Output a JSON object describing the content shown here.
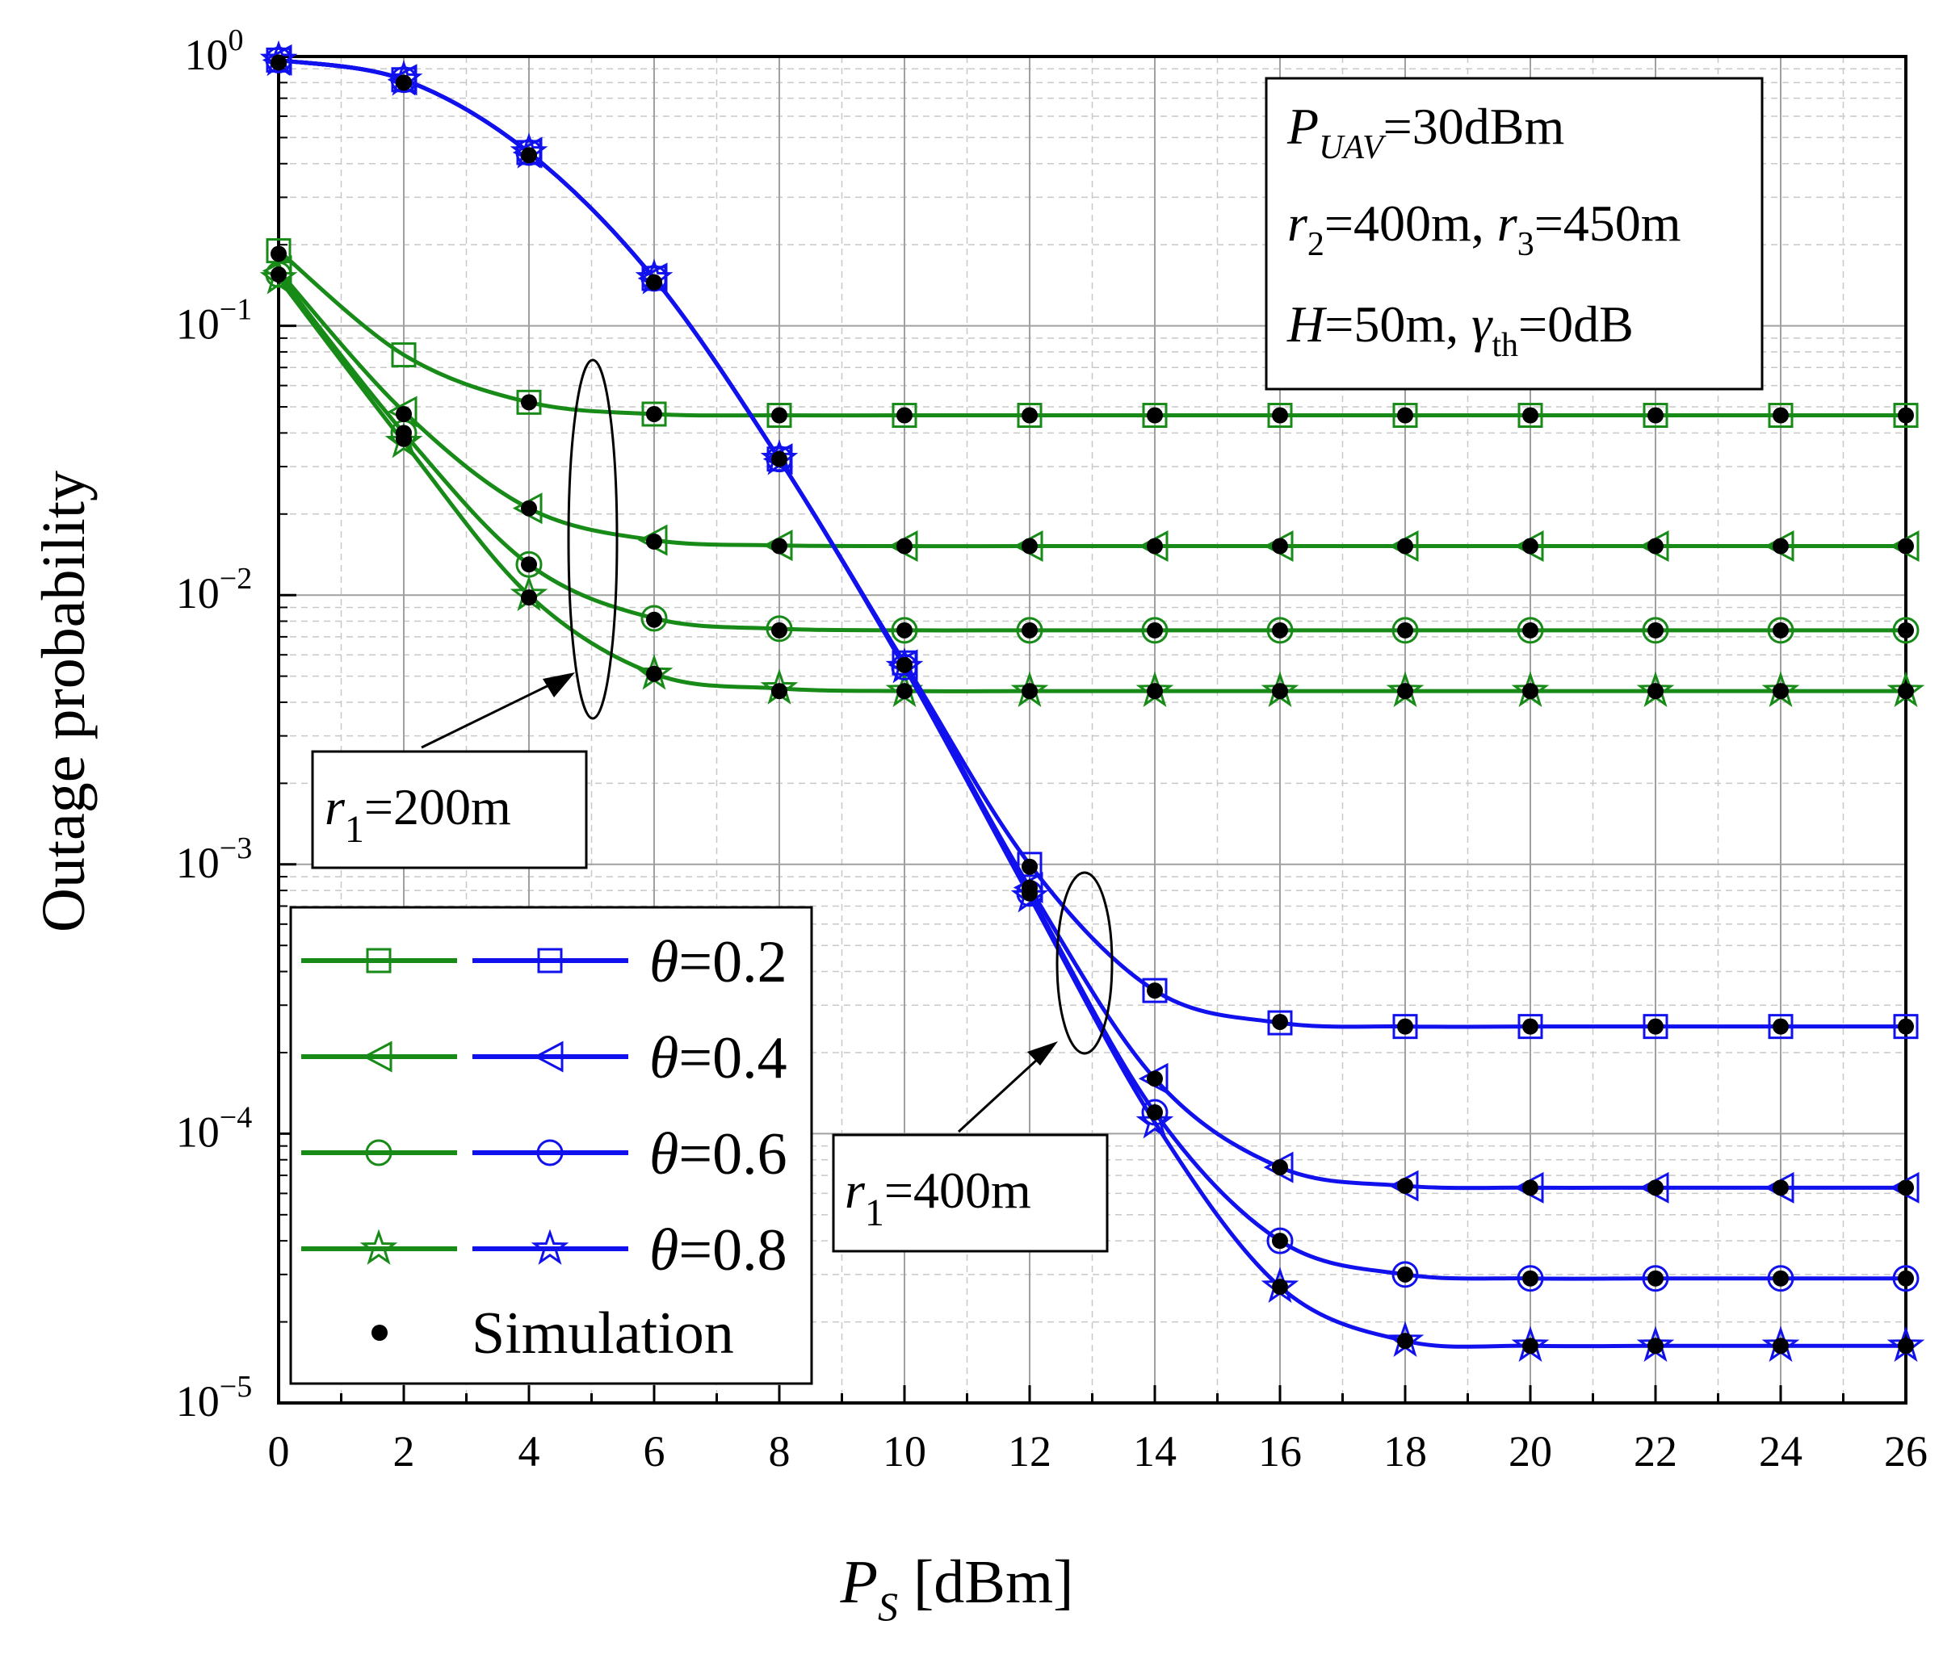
{
  "chart_data": {
    "type": "line",
    "title": "",
    "xlabel": {
      "main": "P",
      "sub": "S",
      "rest": " [dBm]"
    },
    "ylabel": "Outage probability",
    "xlim": [
      0,
      26
    ],
    "ylim": [
      1e-05,
      1
    ],
    "yscale": "log",
    "grid": true,
    "x_ticks": [
      "0",
      "2",
      "4",
      "6",
      "8",
      "10",
      "12",
      "14",
      "16",
      "18",
      "20",
      "22",
      "24",
      "26"
    ],
    "y_ticks": [
      {
        "base": "10",
        "exp": "0",
        "value": 1
      },
      {
        "base": "10",
        "exp": "−1",
        "value": 0.1
      },
      {
        "base": "10",
        "exp": "−2",
        "value": 0.01
      },
      {
        "base": "10",
        "exp": "−3",
        "value": 0.001
      },
      {
        "base": "10",
        "exp": "−4",
        "value": 0.0001
      },
      {
        "base": "10",
        "exp": "−5",
        "value": 1e-05
      }
    ],
    "x": [
      0,
      2,
      4,
      6,
      8,
      10,
      12,
      14,
      16,
      18,
      20,
      22,
      24,
      26
    ],
    "series": [
      {
        "name": "r1=200m, θ=0.2",
        "color": "#178a17",
        "marker": "square",
        "values": [
          0.19,
          0.078,
          0.052,
          0.047,
          0.0465,
          0.0465,
          0.0465,
          0.0465,
          0.0465,
          0.0465,
          0.0465,
          0.0465,
          0.0465,
          0.0465
        ]
      },
      {
        "name": "r1=200m, θ=0.4",
        "color": "#178a17",
        "marker": "triangle-left",
        "values": [
          0.16,
          0.048,
          0.021,
          0.016,
          0.0153,
          0.0152,
          0.0152,
          0.0152,
          0.0152,
          0.0152,
          0.0152,
          0.0152,
          0.0152,
          0.0152
        ]
      },
      {
        "name": "r1=200m, θ=0.6",
        "color": "#178a17",
        "marker": "circle",
        "values": [
          0.155,
          0.04,
          0.013,
          0.0082,
          0.0075,
          0.0074,
          0.0074,
          0.0074,
          0.0074,
          0.0074,
          0.0074,
          0.0074,
          0.0074,
          0.0074
        ]
      },
      {
        "name": "r1=200m, θ=0.8",
        "color": "#178a17",
        "marker": "star",
        "values": [
          0.15,
          0.037,
          0.01,
          0.0051,
          0.0045,
          0.0044,
          0.0044,
          0.0044,
          0.0044,
          0.0044,
          0.0044,
          0.0044,
          0.0044,
          0.0044
        ]
      },
      {
        "name": "r1=400m, θ=0.2",
        "color": "#1111ee",
        "marker": "square",
        "values": [
          0.97,
          0.82,
          0.44,
          0.15,
          0.032,
          0.0056,
          0.001,
          0.00034,
          0.000258,
          0.00025,
          0.00025,
          0.00025,
          0.00025,
          0.00025
        ]
      },
      {
        "name": "r1=400m, θ=0.4",
        "color": "#1111ee",
        "marker": "triangle-left",
        "values": [
          0.97,
          0.82,
          0.44,
          0.15,
          0.032,
          0.0055,
          0.00082,
          0.00016,
          7.5e-05,
          6.4e-05,
          6.3e-05,
          6.3e-05,
          6.3e-05,
          6.3e-05
        ]
      },
      {
        "name": "r1=400m, θ=0.6",
        "color": "#1111ee",
        "marker": "circle",
        "values": [
          0.97,
          0.82,
          0.44,
          0.15,
          0.032,
          0.0054,
          0.00078,
          0.00012,
          4e-05,
          3e-05,
          2.9e-05,
          2.9e-05,
          2.9e-05,
          2.9e-05
        ]
      },
      {
        "name": "r1=400m, θ=0.8",
        "color": "#1111ee",
        "marker": "star",
        "values": [
          0.97,
          0.82,
          0.44,
          0.15,
          0.032,
          0.0054,
          0.00076,
          0.00011,
          2.7e-05,
          1.7e-05,
          1.63e-05,
          1.63e-05,
          1.63e-05,
          1.63e-05
        ]
      }
    ],
    "simulation": {
      "label": "Simulation",
      "points": [
        [
          0,
          0.95
        ],
        [
          2,
          0.8
        ],
        [
          4,
          0.43
        ],
        [
          6,
          0.145
        ],
        [
          8,
          0.032
        ],
        [
          10,
          0.0055
        ],
        [
          12,
          0.00078
        ],
        [
          14,
          0.00012
        ],
        [
          16,
          2.7e-05
        ],
        [
          18,
          1.7e-05
        ],
        [
          20,
          1.63e-05
        ],
        [
          22,
          1.63e-05
        ],
        [
          24,
          1.63e-05
        ],
        [
          26,
          1.63e-05
        ],
        [
          0,
          0.185
        ],
        [
          2,
          0.047
        ],
        [
          4,
          0.052
        ],
        [
          6,
          0.047
        ],
        [
          8,
          0.0465
        ],
        [
          10,
          0.0465
        ],
        [
          12,
          0.0465
        ],
        [
          14,
          0.0465
        ],
        [
          16,
          0.0465
        ],
        [
          18,
          0.0465
        ],
        [
          20,
          0.0465
        ],
        [
          22,
          0.0465
        ],
        [
          24,
          0.0465
        ],
        [
          26,
          0.0465
        ],
        [
          0,
          0.155
        ],
        [
          2,
          0.04
        ],
        [
          4,
          0.021
        ],
        [
          6,
          0.0158
        ],
        [
          8,
          0.0152
        ],
        [
          10,
          0.0152
        ],
        [
          12,
          0.0152
        ],
        [
          14,
          0.0152
        ],
        [
          16,
          0.0152
        ],
        [
          18,
          0.0152
        ],
        [
          20,
          0.0152
        ],
        [
          22,
          0.0152
        ],
        [
          24,
          0.0152
        ],
        [
          26,
          0.0152
        ],
        [
          2,
          0.038
        ],
        [
          4,
          0.013
        ],
        [
          6,
          0.0081
        ],
        [
          8,
          0.0074
        ],
        [
          10,
          0.0074
        ],
        [
          12,
          0.0074
        ],
        [
          14,
          0.0074
        ],
        [
          16,
          0.0074
        ],
        [
          18,
          0.0074
        ],
        [
          20,
          0.0074
        ],
        [
          22,
          0.0074
        ],
        [
          24,
          0.0074
        ],
        [
          26,
          0.0074
        ],
        [
          4,
          0.0098
        ],
        [
          6,
          0.0051
        ],
        [
          8,
          0.0044
        ],
        [
          10,
          0.0044
        ],
        [
          12,
          0.0044
        ],
        [
          14,
          0.0044
        ],
        [
          16,
          0.0044
        ],
        [
          18,
          0.0044
        ],
        [
          20,
          0.0044
        ],
        [
          22,
          0.0044
        ],
        [
          24,
          0.0044
        ],
        [
          26,
          0.0044
        ],
        [
          12,
          0.00098
        ],
        [
          14,
          0.00034
        ],
        [
          16,
          0.00026
        ],
        [
          18,
          0.00025
        ],
        [
          20,
          0.00025
        ],
        [
          22,
          0.00025
        ],
        [
          24,
          0.00025
        ],
        [
          26,
          0.00025
        ],
        [
          14,
          0.00016
        ],
        [
          16,
          7.5e-05
        ],
        [
          18,
          6.4e-05
        ],
        [
          20,
          6.3e-05
        ],
        [
          22,
          6.3e-05
        ],
        [
          24,
          6.3e-05
        ],
        [
          26,
          6.3e-05
        ],
        [
          12,
          0.00082
        ],
        [
          16,
          4e-05
        ],
        [
          18,
          3e-05
        ],
        [
          20,
          2.9e-05
        ],
        [
          22,
          2.9e-05
        ],
        [
          24,
          2.9e-05
        ],
        [
          26,
          2.9e-05
        ]
      ]
    },
    "legend": [
      {
        "label_var": "θ",
        "label_rest": "=0.2",
        "marker": "square"
      },
      {
        "label_var": "θ",
        "label_rest": "=0.4",
        "marker": "triangle-left"
      },
      {
        "label_var": "θ",
        "label_rest": "=0.6",
        "marker": "circle"
      },
      {
        "label_var": "θ",
        "label_rest": "=0.8",
        "marker": "star"
      }
    ],
    "legend_placement": "bottom-left",
    "legend_colors": {
      "left": "#178a17",
      "right": "#1111ee"
    },
    "parameter_box": {
      "line1": {
        "var": "P",
        "sub": "UAV",
        "rest": "=30dBm"
      },
      "line2": {
        "var_a": "r",
        "sub_a": "2",
        "rest_a": "=400m, ",
        "var_b": "r",
        "sub_b": "3",
        "rest_b": "=450m"
      },
      "line3": {
        "var_a": "H",
        "rest_a": "=50m, ",
        "var_b": "γ",
        "sub_b": "th",
        "rest_b": "=0dB"
      }
    },
    "annotations": [
      {
        "var": "r",
        "sub": "1",
        "rest": "=200m"
      },
      {
        "var": "r",
        "sub": "1",
        "rest": "=400m"
      }
    ]
  }
}
